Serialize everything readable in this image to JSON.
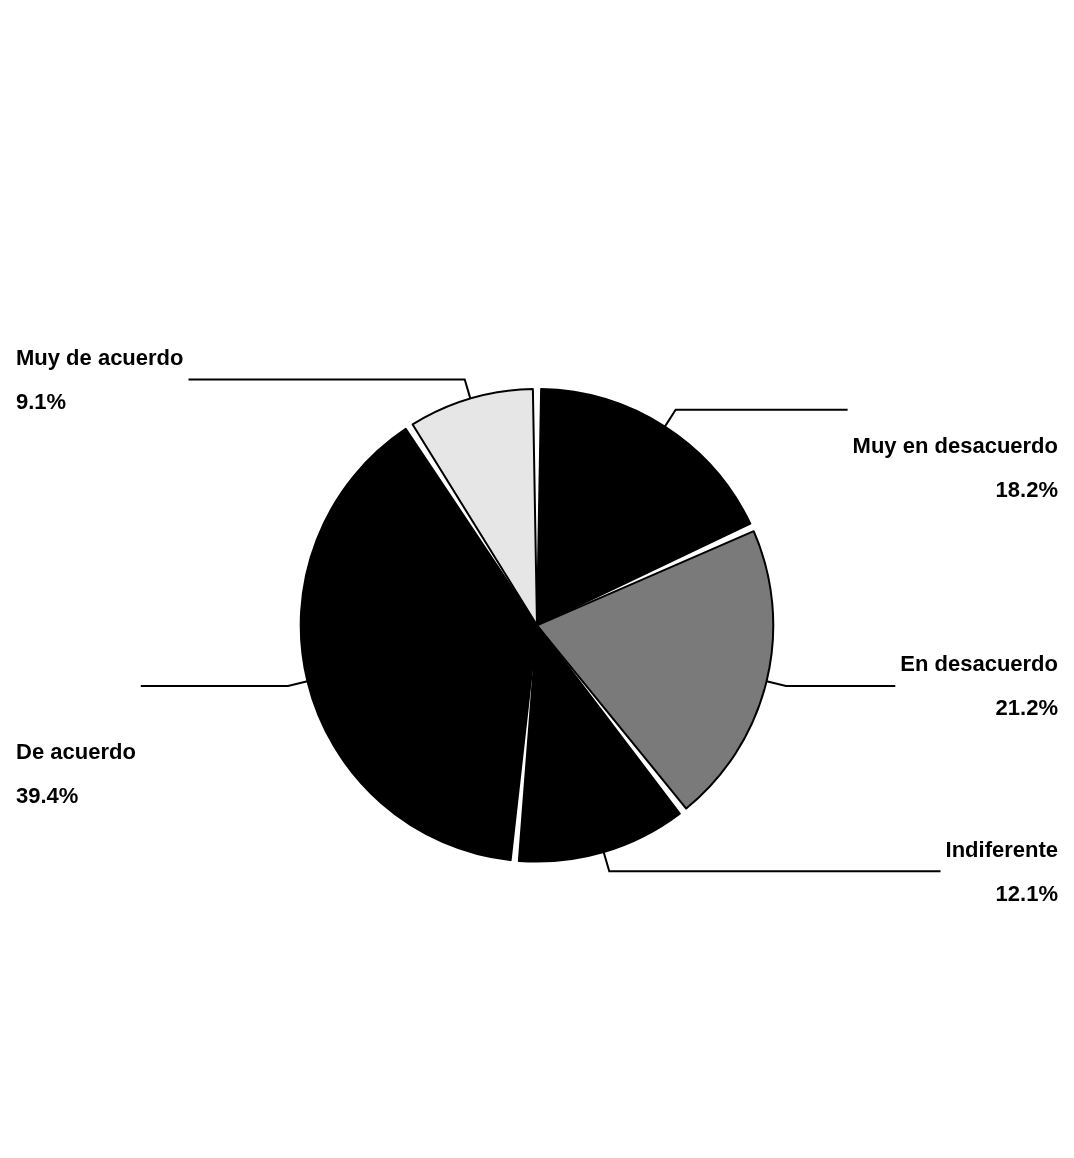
{
  "chart_data": {
    "type": "pie",
    "categories": [
      "Muy en desacuerdo",
      "En desacuerdo",
      "Indiferente",
      "De acuerdo",
      "Muy de acuerdo"
    ],
    "values": [
      18.2,
      21.2,
      12.1,
      39.4,
      9.1
    ],
    "colors": [
      "#000000",
      "#7a7a7a",
      "#000000",
      "#000000",
      "#e6e6e6"
    ],
    "value_labels": [
      "18.2%",
      "21.2%",
      "12.1%",
      "39.4%",
      "9.1%"
    ],
    "legend": false
  }
}
